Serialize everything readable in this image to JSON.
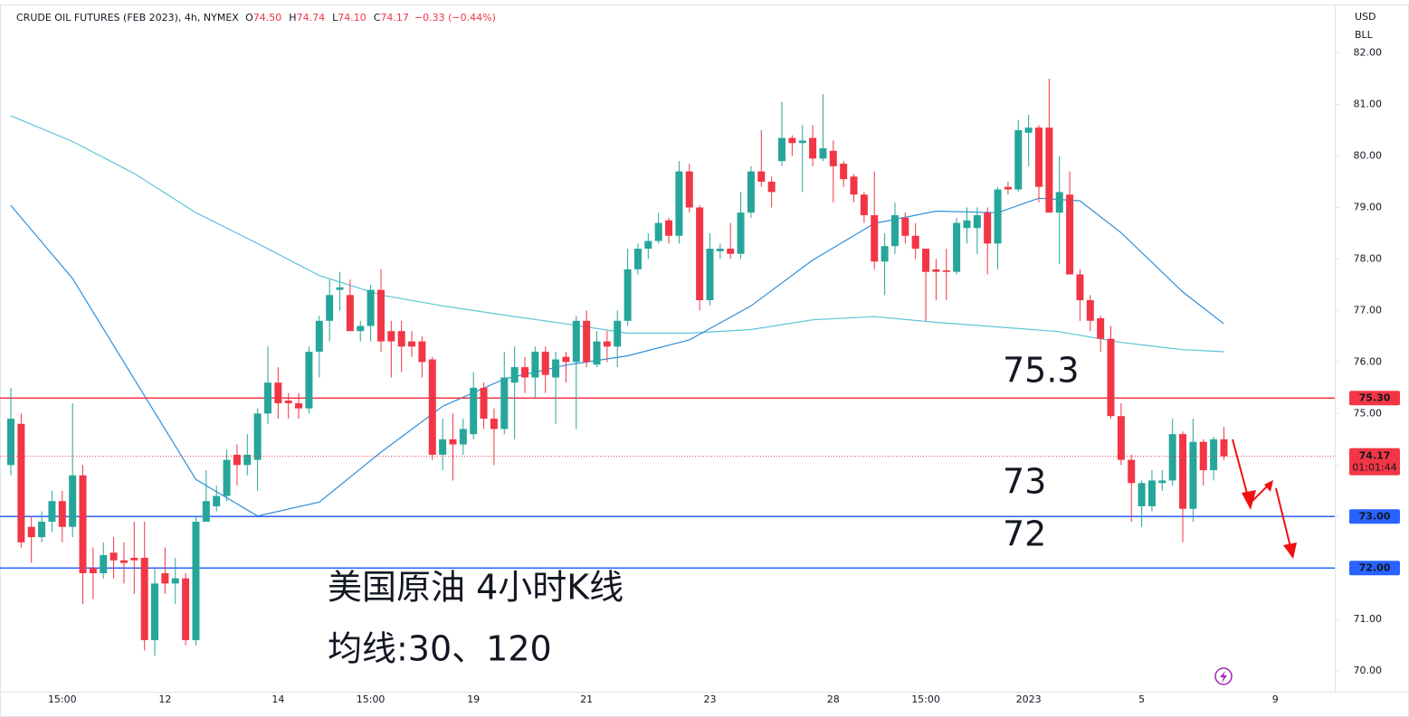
{
  "chart_data": {
    "type": "candlestick",
    "title": "CRUDE OIL FUTURES (FEB 2023), 4h, NYMEX",
    "ohlc_legend": [
      {
        "key": "O",
        "value": "74.50"
      },
      {
        "key": "H",
        "value": "74.74"
      },
      {
        "key": "L",
        "value": "74.10"
      },
      {
        "key": "C",
        "value": "74.17"
      }
    ],
    "change": "−0.33 (−0.44%)",
    "currency": [
      "USD",
      "BLL"
    ],
    "up_color": "#26a69a",
    "down_color": "#f23645",
    "categories": [
      null,
      null,
      null,
      null,
      null,
      "15:00",
      null,
      null,
      null,
      null,
      null,
      null,
      null,
      null,
      null,
      "12",
      null,
      null,
      null,
      null,
      null,
      null,
      null,
      null,
      null,
      null,
      "14",
      null,
      null,
      null,
      null,
      null,
      null,
      null,
      null,
      "15:00",
      null,
      null,
      null,
      null,
      null,
      null,
      null,
      null,
      null,
      "19",
      null,
      null,
      null,
      null,
      null,
      null,
      null,
      null,
      null,
      null,
      "21",
      null,
      null,
      null,
      null,
      null,
      null,
      null,
      null,
      null,
      null,
      null,
      "23",
      null,
      null,
      null,
      null,
      null,
      null,
      null,
      null,
      null,
      null,
      null,
      "28",
      null,
      null,
      null,
      null,
      null,
      null,
      null,
      null,
      "15:00",
      null,
      null,
      null,
      null,
      null,
      null,
      null,
      null,
      null,
      "2023",
      null,
      null,
      null,
      null,
      null,
      null,
      null,
      null,
      null,
      null,
      "5",
      null,
      null,
      null,
      null,
      null,
      null,
      null,
      null,
      null,
      null,
      null,
      null,
      "9"
    ],
    "open": [
      74.0,
      74.8,
      72.8,
      72.6,
      72.9,
      73.3,
      72.8,
      73.8,
      72.0,
      71.9,
      72.3,
      72.15,
      72.2,
      72.2,
      70.6,
      71.9,
      71.7,
      71.8,
      70.6,
      72.9,
      73.2,
      73.4,
      74.2,
      74.0,
      74.1,
      75.0,
      75.6,
      75.25,
      75.2,
      75.1,
      76.2,
      76.8,
      77.4,
      77.3,
      76.6,
      76.7,
      77.4,
      76.6,
      76.6,
      76.4,
      76.4,
      76.05,
      74.2,
      74.5,
      74.4,
      74.6,
      75.5,
      74.9,
      74.7,
      75.6,
      75.9,
      75.7,
      76.2,
      75.7,
      76.1,
      76.0,
      76.8,
      75.95,
      76.4,
      76.3,
      76.8,
      77.8,
      78.2,
      78.35,
      78.75,
      78.45,
      79.7,
      79.0,
      77.2,
      78.15,
      78.2,
      78.1,
      78.9,
      79.7,
      79.5,
      79.9,
      80.35,
      80.25,
      80.35,
      79.95,
      80.1,
      79.85,
      79.6,
      79.25,
      78.85,
      77.95,
      78.25,
      78.8,
      78.45,
      78.2,
      77.8,
      77.78,
      77.75,
      78.6,
      78.6,
      78.9,
      78.3,
      79.4,
      79.35,
      80.45,
      80.55,
      80.55,
      78.9,
      79.25,
      77.7,
      77.2,
      76.85,
      76.45,
      74.95,
      74.1,
      73.2,
      73.2,
      73.65,
      73.7,
      74.6,
      73.15,
      74.45,
      73.9,
      74.5,
      null,
      null,
      null,
      null,
      null
    ],
    "high": [
      75.5,
      75.0,
      73.0,
      73.1,
      73.5,
      73.5,
      75.2,
      74.0,
      72.4,
      72.5,
      72.6,
      72.5,
      72.9,
      72.9,
      72.0,
      72.4,
      72.2,
      71.9,
      73.0,
      73.9,
      73.6,
      74.3,
      74.4,
      74.6,
      75.1,
      76.3,
      75.9,
      75.4,
      75.4,
      76.3,
      76.9,
      77.6,
      77.75,
      77.6,
      76.8,
      77.5,
      77.8,
      76.8,
      76.8,
      76.6,
      76.5,
      76.1,
      74.9,
      75.0,
      74.9,
      75.8,
      75.6,
      75.1,
      76.2,
      76.3,
      76.1,
      76.3,
      76.3,
      76.2,
      76.2,
      76.9,
      77.0,
      76.6,
      76.6,
      77.0,
      78.2,
      78.3,
      78.5,
      78.9,
      78.8,
      79.9,
      79.85,
      79.05,
      78.5,
      78.3,
      78.7,
      79.3,
      79.8,
      80.5,
      79.6,
      81.05,
      80.4,
      80.6,
      80.6,
      81.2,
      80.3,
      79.9,
      79.65,
      79.3,
      79.7,
      78.5,
      79.1,
      78.9,
      78.7,
      78.2,
      78.0,
      78.2,
      78.8,
      79.0,
      79.0,
      79.0,
      79.4,
      79.5,
      80.7,
      80.8,
      80.6,
      81.5,
      80.0,
      79.7,
      77.8,
      77.3,
      76.9,
      76.7,
      75.2,
      74.2,
      73.7,
      73.9,
      73.9,
      74.9,
      74.65,
      74.9,
      74.5,
      74.55,
      74.74,
      null,
      null,
      null,
      null,
      null
    ],
    "low": [
      73.8,
      72.4,
      72.1,
      72.5,
      72.7,
      72.5,
      72.6,
      71.3,
      71.4,
      71.8,
      71.8,
      71.7,
      71.5,
      70.4,
      70.3,
      71.5,
      71.3,
      70.5,
      70.5,
      72.9,
      73.1,
      73.3,
      73.6,
      73.8,
      73.5,
      74.8,
      74.9,
      74.9,
      74.9,
      75.0,
      75.7,
      76.4,
      77.0,
      76.6,
      76.4,
      76.4,
      76.2,
      75.7,
      75.8,
      76.1,
      75.7,
      74.1,
      73.9,
      73.7,
      74.2,
      74.5,
      74.7,
      74.0,
      74.6,
      74.5,
      75.4,
      75.3,
      75.4,
      74.8,
      75.6,
      74.7,
      75.9,
      75.9,
      76.0,
      75.9,
      76.7,
      77.7,
      78.0,
      78.3,
      78.3,
      78.3,
      78.9,
      77.0,
      77.1,
      78.0,
      78.0,
      78.0,
      78.8,
      79.4,
      79.0,
      79.8,
      80.0,
      79.3,
      79.8,
      79.9,
      79.1,
      79.4,
      79.1,
      78.7,
      77.8,
      77.3,
      78.1,
      78.3,
      78.0,
      76.8,
      77.2,
      77.2,
      77.7,
      78.3,
      78.1,
      77.7,
      77.8,
      79.25,
      79.3,
      79.8,
      79.1,
      78.9,
      77.9,
      77.7,
      76.8,
      76.6,
      76.2,
      74.9,
      74.0,
      72.9,
      72.8,
      73.1,
      73.5,
      73.6,
      72.5,
      72.9,
      73.6,
      73.7,
      74.1,
      null,
      null,
      null,
      null,
      null
    ],
    "close": [
      74.9,
      72.5,
      72.6,
      72.9,
      73.3,
      72.8,
      73.8,
      71.9,
      71.9,
      72.25,
      72.15,
      72.1,
      72.15,
      70.6,
      71.7,
      71.7,
      71.8,
      70.6,
      72.9,
      73.3,
      73.4,
      74.1,
      74.0,
      74.2,
      75.0,
      75.6,
      75.2,
      75.2,
      75.1,
      76.2,
      76.8,
      77.3,
      77.45,
      76.6,
      76.7,
      77.4,
      76.4,
      76.4,
      76.3,
      76.3,
      76.0,
      74.2,
      74.5,
      74.4,
      74.7,
      75.5,
      74.9,
      74.7,
      75.7,
      75.9,
      75.7,
      76.2,
      75.75,
      76.05,
      76.0,
      76.8,
      76.0,
      76.4,
      76.3,
      76.8,
      77.8,
      78.2,
      78.35,
      78.7,
      78.45,
      79.7,
      79.0,
      77.2,
      78.2,
      78.2,
      78.1,
      78.9,
      79.7,
      79.5,
      79.3,
      80.35,
      80.25,
      80.3,
      79.95,
      80.15,
      79.8,
      79.55,
      79.25,
      78.85,
      77.95,
      78.25,
      78.85,
      78.45,
      78.2,
      77.75,
      77.75,
      77.75,
      78.7,
      78.75,
      78.85,
      78.3,
      79.35,
      79.35,
      80.5,
      80.55,
      79.4,
      78.9,
      79.3,
      77.7,
      77.2,
      76.8,
      76.45,
      74.95,
      74.1,
      73.65,
      73.65,
      73.7,
      73.7,
      74.6,
      73.15,
      74.45,
      73.9,
      74.5,
      74.17,
      null,
      null,
      null,
      null,
      null
    ],
    "series": [
      {
        "color": "#5bc5d6",
        "x": [
          0,
          6,
          12,
          18,
          24,
          30,
          36,
          42,
          48,
          54,
          60,
          66,
          72,
          78,
          84,
          90,
          96,
          102,
          108,
          114,
          118
        ],
        "values": [
          80.78,
          80.28,
          79.66,
          78.9,
          78.3,
          77.68,
          77.3,
          77.09,
          76.91,
          76.74,
          76.56,
          76.56,
          76.63,
          76.82,
          76.88,
          76.77,
          76.68,
          76.59,
          76.38,
          76.24,
          76.2
        ]
      },
      {
        "color": "#2f8fdb",
        "x": [
          0,
          6,
          12,
          18,
          24,
          30,
          36,
          42,
          48,
          54,
          60,
          66,
          72,
          78,
          84,
          90,
          96,
          100,
          104,
          108,
          114,
          118
        ],
        "values": [
          79.04,
          77.62,
          75.67,
          73.72,
          73.01,
          73.28,
          74.25,
          75.14,
          75.67,
          75.94,
          76.12,
          76.43,
          77.09,
          77.98,
          78.69,
          78.93,
          78.9,
          79.18,
          79.13,
          78.51,
          77.36,
          76.74
        ]
      }
    ],
    "ylim": [
      69.6,
      82.94
    ],
    "yticks": [
      {
        "value": 70,
        "label": "70.00"
      },
      {
        "value": 71,
        "label": "71.00"
      },
      {
        "value": 72,
        "label": "72.00"
      },
      {
        "value": 73,
        "label": "73.00"
      },
      {
        "value": 74,
        "label": "74.00"
      },
      {
        "value": 75,
        "label": "75.00"
      },
      {
        "value": 76,
        "label": "76.00"
      },
      {
        "value": 77,
        "label": "77.00"
      },
      {
        "value": 78,
        "label": "78.00"
      },
      {
        "value": 79,
        "label": "79.00"
      },
      {
        "value": 80,
        "label": "80.00"
      },
      {
        "value": 81,
        "label": "81.00"
      },
      {
        "value": 82,
        "label": "82.00"
      }
    ],
    "levels": [
      {
        "value": 75.3,
        "label": "75.30",
        "color": "#f23645"
      },
      {
        "value": 73,
        "label": "73.00",
        "color": "#2962ff"
      },
      {
        "value": 72,
        "label": "72.00",
        "color": "#2962ff"
      }
    ],
    "last_price": {
      "value": 74.17,
      "label": "74.17",
      "countdown": "01:01:44",
      "color": "#f23645"
    },
    "annotations": [
      "75.3",
      "73",
      "72",
      "美国原油 4小时K线",
      "均线:30、120"
    ],
    "annotation_color": "#e8262b"
  }
}
